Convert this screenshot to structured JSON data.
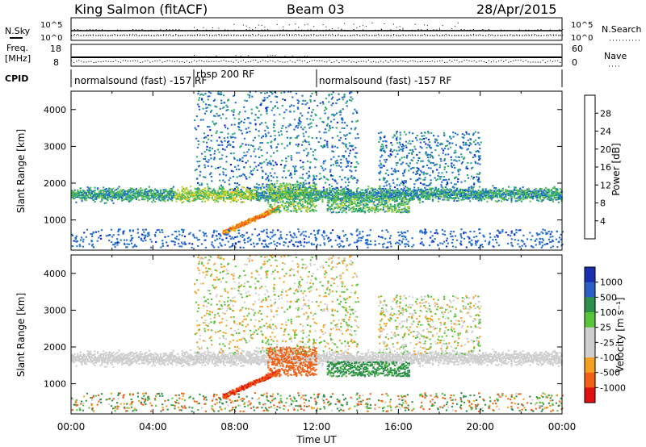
{
  "header": {
    "station": "King Salmon (fitACF)",
    "beam": "Beam 03",
    "date": "28/Apr/2015"
  },
  "param_panels": {
    "nsky_label": "N.Sky",
    "nsky_ticks": [
      "10^5",
      "10^0"
    ],
    "nsearch_label": "N.Search",
    "nsearch_ticks": [
      "10^5",
      "10^0"
    ],
    "freq_label_1": "Freq.",
    "freq_label_2": "[MHz]",
    "freq_ticks": [
      "18",
      "8"
    ],
    "nave_label": "Nave",
    "nave_ticks": [
      "60",
      "0"
    ],
    "cpid_label": "CPID",
    "cpid_segments": [
      {
        "text": "normalsound (fast) -157 RF",
        "from": 0,
        "to": 6
      },
      {
        "text": "rbsp 200 RF",
        "from": 6,
        "to": 12
      },
      {
        "text": "normalsound (fast) -157 RF",
        "from": 12,
        "to": 24
      }
    ]
  },
  "colors": {
    "power": [
      "#0a1fd8",
      "#1f6bd0",
      "#2aa879",
      "#5fbf4b",
      "#b9d238",
      "#f2c619",
      "#f28a17",
      "#ee4e12",
      "#e01010"
    ],
    "velocity": [
      "#e01010",
      "#f06015",
      "#f5a020",
      "#cfcfcf",
      "#cfcfcf",
      "#58c43a",
      "#2c8f4a",
      "#2a5fc8",
      "#1a2fb0"
    ]
  },
  "chart_data": [
    {
      "type": "heatmap",
      "name": "power",
      "ylabel": "Slant Range [km]",
      "xlabel": "",
      "xlim": [
        0,
        24
      ],
      "ylim": [
        180,
        4500
      ],
      "x_ticks": [
        "00:00",
        "04:00",
        "08:00",
        "12:00",
        "16:00",
        "20:00",
        "00:00"
      ],
      "y_ticks": [
        1000,
        2000,
        3000,
        4000
      ],
      "colorbar_label": "Power [dB]",
      "colorbar_ticks": [
        "4",
        "8",
        "12",
        "16",
        "20",
        "24",
        "28"
      ],
      "features": [
        {
          "desc": "band",
          "x": [
            0,
            24
          ],
          "y_center": [
            1680,
            1700
          ],
          "width": 260,
          "level": 10
        },
        {
          "desc": "strong arc",
          "x": [
            7.5,
            10
          ],
          "y": [
            700,
            1300
          ],
          "level": 22
        }
      ]
    },
    {
      "type": "heatmap",
      "name": "velocity",
      "ylabel": "Slant Range [km]",
      "xlabel": "Time UT",
      "xlim": [
        0,
        24
      ],
      "ylim": [
        180,
        4500
      ],
      "x_ticks": [
        "00:00",
        "04:00",
        "08:00",
        "12:00",
        "16:00",
        "20:00",
        "00:00"
      ],
      "y_ticks": [
        1000,
        2000,
        3000,
        4000
      ],
      "colorbar_label": "Velocity [m s⁻¹]",
      "colorbar_ticks": [
        "1000",
        "500",
        "100",
        "25",
        "-25",
        "-100",
        "-500",
        "-1000"
      ],
      "features": [
        {
          "desc": "ground scatter band",
          "x": [
            0,
            24
          ],
          "y_center": [
            1680,
            1700
          ],
          "velocity": 0
        },
        {
          "desc": "negative velocity arc",
          "x": [
            8,
            12
          ],
          "y": [
            700,
            1900
          ],
          "velocity": -300
        },
        {
          "desc": "positive velocity patch",
          "x": [
            12.5,
            16.5
          ],
          "y": [
            1200,
            1600
          ],
          "velocity": 200
        }
      ]
    }
  ]
}
